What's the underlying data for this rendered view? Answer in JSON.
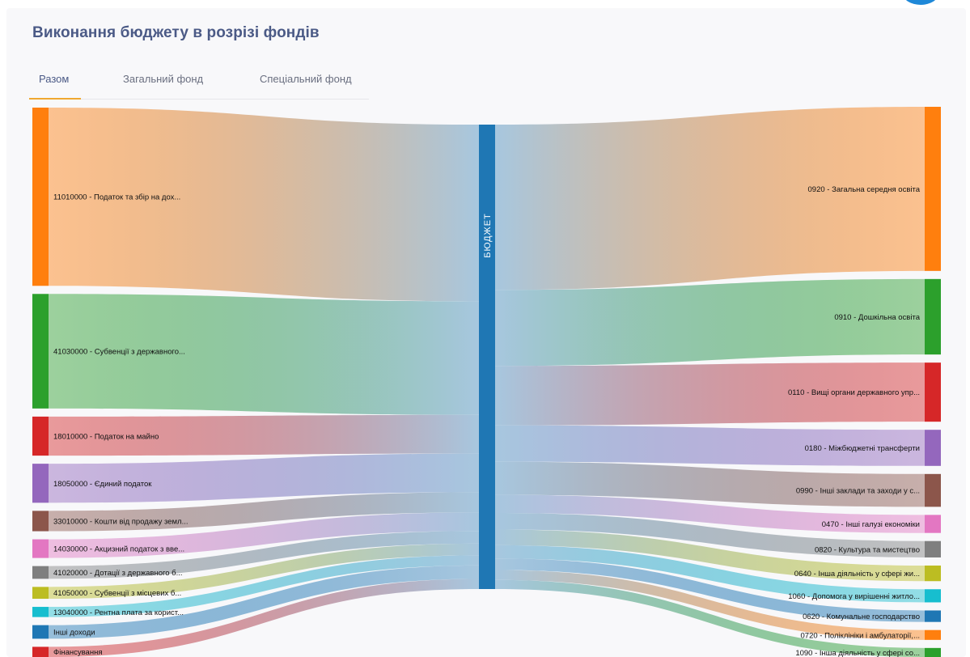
{
  "page": {
    "title": "Виконання бюджету в розрізі фондів"
  },
  "tabs": [
    {
      "label": "Разом",
      "active": true
    },
    {
      "label": "Загальний фонд",
      "active": false
    },
    {
      "label": "Спеціальний фонд",
      "active": false
    }
  ],
  "chart_data": {
    "type": "sankey",
    "center_node": "БЮДЖЕТ",
    "center_color": "#1f77b4",
    "sources": [
      {
        "label": "11010000 - Податок та збір на дох...",
        "value": 210,
        "color": "#ff7f0e"
      },
      {
        "label": "41030000 - Субвенції з державного...",
        "value": 135,
        "color": "#2ca02c"
      },
      {
        "label": "18010000 - Податок на майно",
        "value": 46,
        "color": "#d62728"
      },
      {
        "label": "18050000 - Єдиний податок",
        "value": 46,
        "color": "#9467bd"
      },
      {
        "label": "33010000 - Кошти від продажу земл...",
        "value": 24,
        "color": "#8c564b"
      },
      {
        "label": "14030000 - Акцизний податок з вве...",
        "value": 22,
        "color": "#e377c2"
      },
      {
        "label": "41020000 - Дотації з державного б...",
        "value": 15,
        "color": "#7f7f7f"
      },
      {
        "label": "41050000 - Субвенції з місцевих б...",
        "value": 14,
        "color": "#bcbd22"
      },
      {
        "label": "13040000 - Рентна плата за корист...",
        "value": 12,
        "color": "#17becf"
      },
      {
        "label": "Інші доходи",
        "value": 16,
        "color": "#1f77b4"
      },
      {
        "label": "Фінансування",
        "value": 12,
        "color": "#d62728"
      }
    ],
    "targets": [
      {
        "label": "0920 - Загальна середня освіта",
        "value": 200,
        "color": "#ff7f0e"
      },
      {
        "label": "0910 - Дошкільна освіта",
        "value": 92,
        "color": "#2ca02c"
      },
      {
        "label": "0110 - Вищі органи державного упр...",
        "value": 72,
        "color": "#d62728"
      },
      {
        "label": "0180 - Міжбюджетні трансферти",
        "value": 44,
        "color": "#9467bd"
      },
      {
        "label": "0990 - Інші заклади та заходи у с...",
        "value": 40,
        "color": "#8c564b"
      },
      {
        "label": "0470 - Інші галузі економіки",
        "value": 22,
        "color": "#e377c2"
      },
      {
        "label": "0820 - Культура та мистецтво",
        "value": 20,
        "color": "#7f7f7f"
      },
      {
        "label": "0640 - Інша діяльність у сфері жи...",
        "value": 19,
        "color": "#bcbd22"
      },
      {
        "label": "1060 - Допомога у вирішенні житло...",
        "value": 16,
        "color": "#17becf"
      },
      {
        "label": "0620 - Комунальне господарство",
        "value": 14,
        "color": "#1f77b4"
      },
      {
        "label": "0720 - Поліклініки і амбулаторії,...",
        "value": 12,
        "color": "#ff7f0e"
      },
      {
        "label": "1090 - Інша діяльність у сфері со...",
        "value": 11,
        "color": "#2ca02c"
      }
    ]
  }
}
